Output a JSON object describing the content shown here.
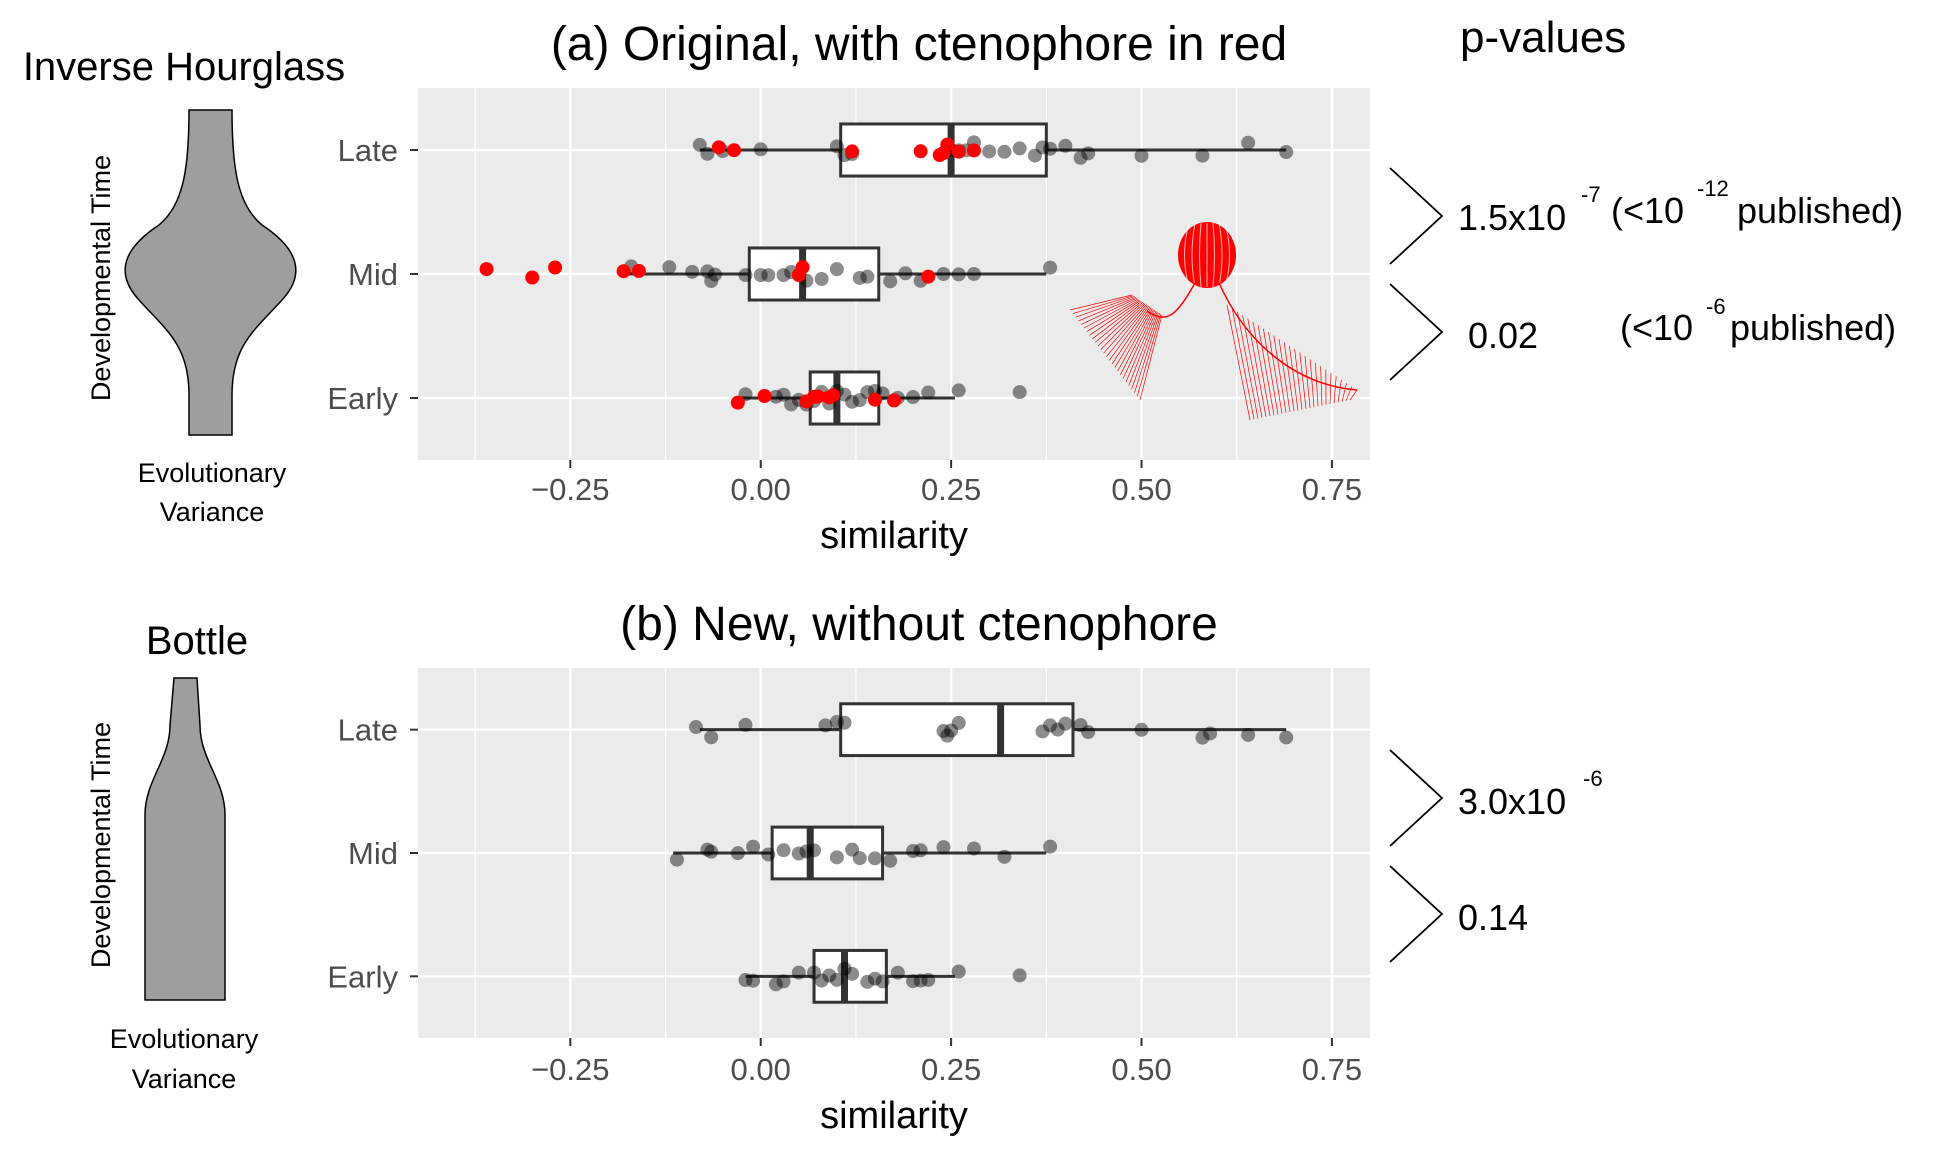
{
  "colors": {
    "panel_bg": "#ebebeb",
    "grid": "#ffffff",
    "ctenophore_point": "#ff0000",
    "other_point": "#000000",
    "shape_fill": "#9e9e9e",
    "text": "#000000",
    "tick_text": "#4d4d4d"
  },
  "shapes": {
    "top": {
      "title": "Inverse Hourglass",
      "ylabel": "Developmental Time",
      "xlabel_line1": "Evolutionary",
      "xlabel_line2": "Variance",
      "icon": "inverse-hourglass-shape"
    },
    "bottom": {
      "title": "Bottle",
      "ylabel": "Developmental Time",
      "xlabel_line1": "Evolutionary",
      "xlabel_line2": "Variance",
      "icon": "bottle-shape"
    }
  },
  "pvalues": {
    "header": "p-values",
    "a_late_mid": {
      "base": "1.5x10",
      "exp": "-7",
      "pub_open": "(<10",
      "pub_exp": "-12",
      "pub_close": " published)"
    },
    "a_mid_early": {
      "value": "0.02",
      "pub_open": "(<10",
      "pub_exp": "-6",
      "pub_close": " published)"
    },
    "b_late_mid": {
      "base": "3.0x10",
      "exp": "-6"
    },
    "b_mid_early": {
      "value": "0.14"
    }
  },
  "ctenophore_icon": "ctenophore-icon",
  "chart_data": [
    {
      "type": "boxplot",
      "title": "(a) Original, with ctenophore in red",
      "xlabel": "similarity",
      "ylabel": "",
      "xlim": [
        -0.45,
        0.8
      ],
      "xticks": [
        -0.25,
        0.0,
        0.25,
        0.5,
        0.75
      ],
      "xtick_labels": [
        "−0.25",
        "0.00",
        "0.25",
        "0.50",
        "0.75"
      ],
      "categories": [
        "Late",
        "Mid",
        "Early"
      ],
      "grid": true,
      "legend": "none",
      "boxes": {
        "Late": {
          "min": -0.08,
          "q1": 0.105,
          "median": 0.25,
          "q3": 0.375,
          "max": 0.69
        },
        "Mid": {
          "min": -0.18,
          "q1": -0.015,
          "median": 0.055,
          "q3": 0.155,
          "max": 0.375
        },
        "Early": {
          "min": -0.03,
          "q1": 0.065,
          "median": 0.1,
          "q3": 0.155,
          "max": 0.255
        }
      },
      "points": {
        "Late": {
          "other": [
            -0.08,
            -0.07,
            -0.05,
            0.0,
            0.1,
            0.11,
            0.12,
            0.25,
            0.26,
            0.27,
            0.28,
            0.3,
            0.32,
            0.34,
            0.36,
            0.37,
            0.38,
            0.4,
            0.42,
            0.43,
            0.5,
            0.58,
            0.64,
            0.69
          ],
          "red": [
            -0.055,
            -0.035,
            0.12,
            0.21,
            0.235,
            0.24,
            0.245,
            0.26,
            0.28
          ]
        },
        "Mid": {
          "other": [
            -0.17,
            -0.12,
            -0.09,
            -0.07,
            -0.065,
            -0.06,
            -0.02,
            0.0,
            0.01,
            0.03,
            0.04,
            0.06,
            0.08,
            0.1,
            0.13,
            0.14,
            0.17,
            0.19,
            0.21,
            0.24,
            0.26,
            0.28,
            0.38
          ],
          "red": [
            -0.36,
            -0.3,
            -0.27,
            -0.18,
            -0.16,
            0.05,
            0.055,
            0.22
          ]
        },
        "Early": {
          "other": [
            -0.02,
            0.02,
            0.03,
            0.04,
            0.05,
            0.06,
            0.07,
            0.08,
            0.09,
            0.1,
            0.11,
            0.12,
            0.13,
            0.14,
            0.15,
            0.16,
            0.18,
            0.2,
            0.22,
            0.26,
            0.34
          ],
          "red": [
            -0.03,
            0.005,
            0.06,
            0.07,
            0.075,
            0.09,
            0.095,
            0.15,
            0.175
          ]
        }
      }
    },
    {
      "type": "boxplot",
      "title": "(b) New, without ctenophore",
      "xlabel": "similarity",
      "ylabel": "",
      "xlim": [
        -0.45,
        0.8
      ],
      "xticks": [
        -0.25,
        0.0,
        0.25,
        0.5,
        0.75
      ],
      "xtick_labels": [
        "−0.25",
        "0.00",
        "0.25",
        "0.50",
        "0.75"
      ],
      "categories": [
        "Late",
        "Mid",
        "Early"
      ],
      "grid": true,
      "legend": "none",
      "boxes": {
        "Late": {
          "min": -0.08,
          "q1": 0.105,
          "median": 0.315,
          "q3": 0.41,
          "max": 0.69
        },
        "Mid": {
          "min": -0.115,
          "q1": 0.015,
          "median": 0.065,
          "q3": 0.16,
          "max": 0.375
        },
        "Early": {
          "min": -0.02,
          "q1": 0.07,
          "median": 0.11,
          "q3": 0.165,
          "max": 0.255
        }
      },
      "points": {
        "Late": {
          "other": [
            -0.085,
            -0.065,
            -0.02,
            0.085,
            0.1,
            0.11,
            0.24,
            0.245,
            0.25,
            0.26,
            0.37,
            0.38,
            0.39,
            0.4,
            0.42,
            0.43,
            0.5,
            0.58,
            0.59,
            0.64,
            0.69
          ],
          "red": []
        },
        "Mid": {
          "other": [
            -0.11,
            -0.07,
            -0.065,
            -0.03,
            -0.01,
            0.01,
            0.03,
            0.05,
            0.06,
            0.07,
            0.1,
            0.12,
            0.13,
            0.15,
            0.17,
            0.2,
            0.21,
            0.24,
            0.28,
            0.32,
            0.38
          ],
          "red": []
        },
        "Early": {
          "other": [
            -0.02,
            -0.01,
            0.02,
            0.03,
            0.05,
            0.07,
            0.08,
            0.09,
            0.1,
            0.11,
            0.12,
            0.14,
            0.15,
            0.16,
            0.18,
            0.2,
            0.21,
            0.22,
            0.26,
            0.34
          ],
          "red": []
        }
      }
    }
  ]
}
